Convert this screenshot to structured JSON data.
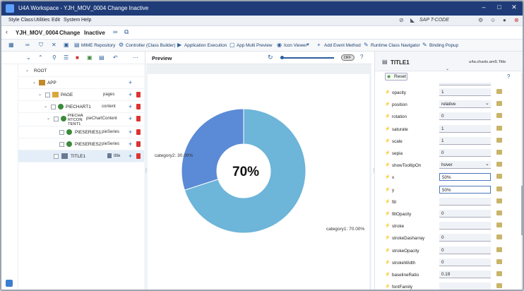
{
  "window": {
    "title": "U4A Workspace - YJH_MOV_0004 Change Inactive"
  },
  "menubar": {
    "items": [
      "Style Class",
      "Utilities",
      "Edit",
      "System",
      "Help"
    ],
    "tcode_label": "SAP T-CODE"
  },
  "header": {
    "app_id": "YJH_MOV_0004",
    "mode": "Change",
    "status": "Inactive"
  },
  "toolbar": {
    "labels": [
      "MIME Repository",
      "Controller (Class Builder)",
      "Application Execution",
      "App Multi Preview",
      "Icon Viewer",
      "Add Event Method",
      "Runtime Class Navigator",
      "Binding Popup"
    ]
  },
  "tree": {
    "rows": [
      {
        "label": "ROOT",
        "agg": ""
      },
      {
        "label": "APP",
        "agg": ""
      },
      {
        "label": "PAGE",
        "agg": "pages"
      },
      {
        "label": "PIECHART1",
        "agg": "content"
      },
      {
        "label": "PIECHA RTCON TENT1",
        "agg": "pieChartContent"
      },
      {
        "label": "PIESERIES1",
        "agg": "pieSeries"
      },
      {
        "label": "PIESERIES2",
        "agg": "pieSeries"
      },
      {
        "label": "TITLE1",
        "agg": "title"
      }
    ]
  },
  "preview": {
    "title": "Preview",
    "toggle_label": "OFF"
  },
  "chart_data": {
    "type": "pie",
    "categories": [
      "category1",
      "category2"
    ],
    "values": [
      70.0,
      30.0
    ],
    "labels": [
      "category1: 70.00%",
      "category2: 30.00%"
    ],
    "center_text": "70%",
    "colors": [
      "#6db5d9",
      "#5b8ad6"
    ]
  },
  "props": {
    "title": "TITLE1",
    "class": "u4a.charts.am5.Title",
    "reset_label": "Reset",
    "rows": [
      {
        "name": "opacity",
        "value": "1"
      },
      {
        "name": "position",
        "value": "relative"
      },
      {
        "name": "rotation",
        "value": "0"
      },
      {
        "name": "saturate",
        "value": "1"
      },
      {
        "name": "scale",
        "value": "1"
      },
      {
        "name": "sepia",
        "value": "0"
      },
      {
        "name": "showTooltipOn",
        "value": "hover"
      },
      {
        "name": "x",
        "value": "50%"
      },
      {
        "name": "y",
        "value": "50%"
      },
      {
        "name": "fill",
        "value": ""
      },
      {
        "name": "fillOpacity",
        "value": "0"
      },
      {
        "name": "stroke",
        "value": ""
      },
      {
        "name": "strokeDasharray",
        "value": "0"
      },
      {
        "name": "strokeOpacity",
        "value": "0"
      },
      {
        "name": "strokeWidth",
        "value": "0"
      },
      {
        "name": "baselineRatio",
        "value": "0.19"
      },
      {
        "name": "fontFamily",
        "value": ""
      }
    ]
  },
  "colors": {
    "titlebar": "#1f3c78",
    "accent": "#2c5f9e",
    "delete": "#dd3333"
  }
}
